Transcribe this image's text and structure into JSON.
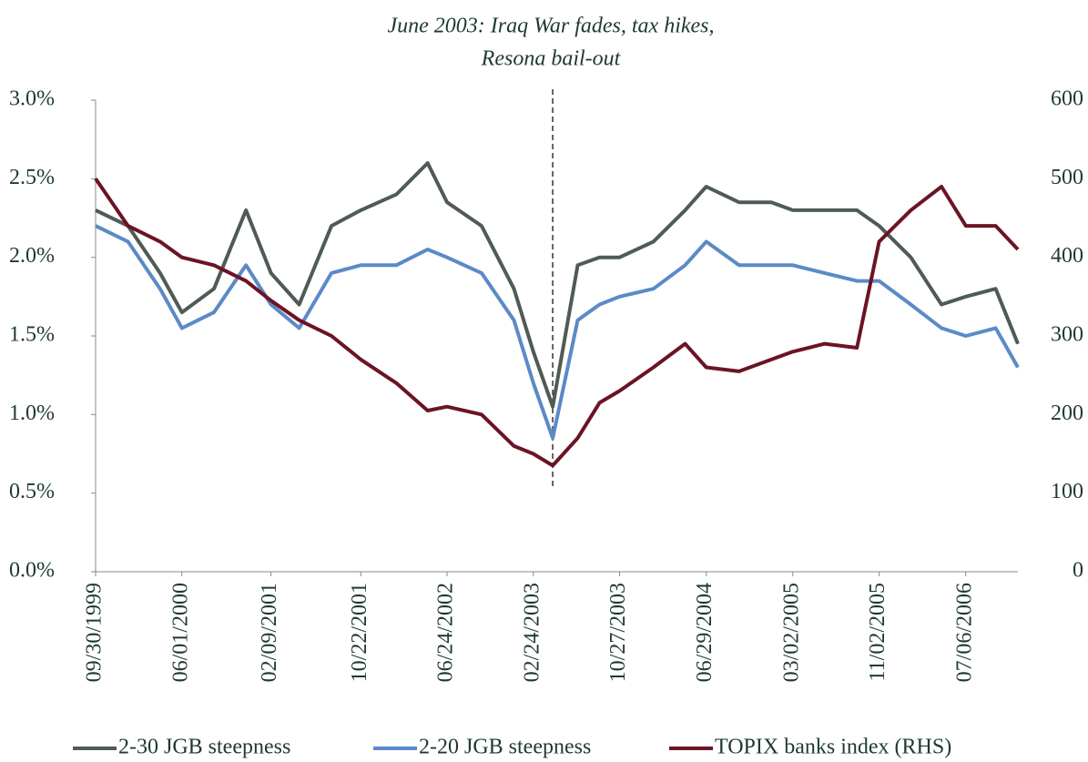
{
  "chart_data": {
    "type": "line",
    "annotation": {
      "text": [
        "June 2003: Iraq War fades, tax hikes,",
        "Resona bail-out"
      ],
      "x": "04/20/2003"
    },
    "x": [
      "09/30/1999",
      "12/31/1999",
      "03/31/2000",
      "06/01/2000",
      "08/31/2000",
      "11/30/2000",
      "02/09/2001",
      "04/30/2001",
      "07/31/2001",
      "10/22/2001",
      "01/31/2002",
      "04/30/2002",
      "06/24/2002",
      "09/30/2002",
      "12/31/2002",
      "02/24/2003",
      "04/20/2003",
      "06/30/2003",
      "08/31/2003",
      "10/27/2003",
      "01/31/2004",
      "04/30/2004",
      "06/29/2004",
      "09/30/2004",
      "12/31/2004",
      "03/02/2005",
      "05/31/2005",
      "08/31/2005",
      "11/02/2005",
      "01/31/2006",
      "04/28/2006",
      "07/06/2006",
      "09/29/2006",
      "12/01/2006"
    ],
    "xlim": [
      "09/30/1999",
      "12/01/2006"
    ],
    "xticks": [
      "09/30/1999",
      "06/01/2000",
      "02/09/2001",
      "10/22/2001",
      "06/24/2002",
      "02/24/2003",
      "10/27/2003",
      "06/29/2004",
      "03/02/2005",
      "11/02/2005",
      "07/06/2006"
    ],
    "ylim": [
      0,
      3
    ],
    "yticks": [
      {
        "value": 0,
        "label": "0.0%"
      },
      {
        "value": 0.5,
        "label": "0.5%"
      },
      {
        "value": 1,
        "label": "1.0%"
      },
      {
        "value": 1.5,
        "label": "1.5%"
      },
      {
        "value": 2,
        "label": "2.0%"
      },
      {
        "value": 2.5,
        "label": "2.5%"
      },
      {
        "value": 3,
        "label": "3.0%"
      }
    ],
    "y2lim": [
      0,
      600
    ],
    "y2ticks": [
      0,
      100,
      200,
      300,
      400,
      500,
      600
    ],
    "series": [
      {
        "name": "2-30 JGB steepness",
        "color": "#4f5b53",
        "values": [
          2.3,
          2.2,
          1.9,
          1.65,
          1.8,
          2.3,
          1.9,
          1.7,
          2.2,
          2.3,
          2.4,
          2.6,
          2.35,
          2.2,
          1.8,
          1.4,
          1.05,
          1.95,
          2.0,
          2.0,
          2.1,
          2.3,
          2.45,
          2.35,
          2.35,
          2.3,
          2.3,
          2.3,
          2.2,
          2.0,
          1.7,
          1.75,
          1.8,
          1.45
        ]
      },
      {
        "name": "2-20 JGB steepness",
        "color": "#5b8ac6",
        "values": [
          2.2,
          2.1,
          1.8,
          1.55,
          1.65,
          1.95,
          1.7,
          1.55,
          1.9,
          1.95,
          1.95,
          2.05,
          2.0,
          1.9,
          1.6,
          1.2,
          0.85,
          1.6,
          1.7,
          1.75,
          1.8,
          1.95,
          2.1,
          1.95,
          1.95,
          1.95,
          1.9,
          1.85,
          1.85,
          1.7,
          1.55,
          1.5,
          1.55,
          1.3
        ]
      },
      {
        "name": "TOPIX banks index (RHS)",
        "color": "#6b1424",
        "axis": "y2",
        "values": [
          500,
          440,
          420,
          400,
          390,
          370,
          345,
          320,
          300,
          270,
          240,
          205,
          210,
          200,
          160,
          150,
          135,
          170,
          215,
          230,
          260,
          290,
          260,
          255,
          270,
          280,
          290,
          285,
          420,
          460,
          490,
          440,
          440,
          410
        ]
      }
    ]
  }
}
